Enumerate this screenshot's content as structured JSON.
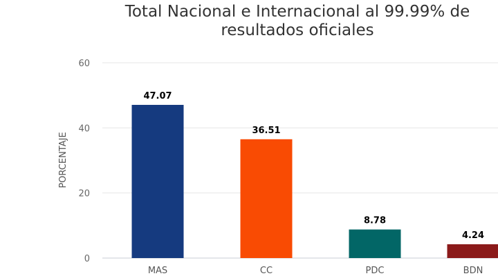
{
  "chart_data": {
    "type": "bar",
    "title": "Total Nacional e Internacional al 99.99% de resultados oficiales",
    "xlabel": "",
    "ylabel": "PORCENTAJE",
    "ylim": [
      0,
      60
    ],
    "yticks": [
      0,
      20,
      40,
      60
    ],
    "grid": true,
    "legend": "none",
    "categories": [
      "MAS",
      "CC",
      "PDC",
      "BDN"
    ],
    "values": [
      47.07,
      36.51,
      8.78,
      4.24
    ],
    "data_labels": [
      "47.07",
      "36.51",
      "8.78",
      "4.24"
    ],
    "colors": [
      "#153a7f",
      "#f94b03",
      "#026666",
      "#8b1a1a"
    ]
  }
}
